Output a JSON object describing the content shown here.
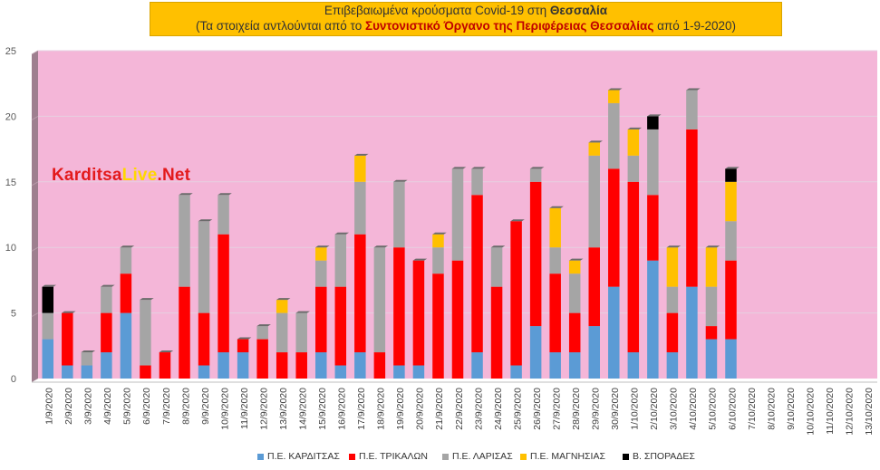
{
  "title": {
    "line1_prefix": "Επιβεβαιωμένα κρούσματα Covid-19 στη ",
    "line1_bold": "Θεσσαλία",
    "line2_prefix": "(Τα στοιχεία αντλούνται από το ",
    "line2_bold": "Συντονιστικό Όργανο της Περιφέρειας Θεσσαλίας",
    "line2_suffix": " από 1-9-2020)"
  },
  "watermark": {
    "part1": "Karditsa",
    "part2": "Live",
    "part3": ".Net"
  },
  "colors": {
    "plot_background": "#f4b6d8",
    "wall_left": "#9e7f8f",
    "karditsa": "#5b9bd5",
    "trikala": "#ff0000",
    "larisa": "#a5a5a5",
    "magnisia": "#ffc000",
    "sporades": "#000000"
  },
  "chart_data": {
    "type": "bar",
    "stacked": true,
    "ylim": [
      0,
      25
    ],
    "yticks": [
      "0",
      "5",
      "10",
      "15",
      "20",
      "25"
    ],
    "grid": true,
    "legend_position": "bottom",
    "categories": [
      "1/9/2020",
      "2/9/2020",
      "3/9/2020",
      "4/9/2020",
      "5/9/2020",
      "6/9/2020",
      "7/9/2020",
      "8/9/2020",
      "9/9/2020",
      "10/9/2020",
      "11/9/2020",
      "12/9/2020",
      "13/9/2020",
      "14/9/2020",
      "15/9/2020",
      "16/9/2020",
      "17/9/2020",
      "18/9/2020",
      "19/9/2020",
      "20/9/2020",
      "21/9/2020",
      "22/9/2020",
      "23/9/2020",
      "24/9/2020",
      "25/9/2020",
      "26/9/2020",
      "27/9/2020",
      "28/9/2020",
      "29/9/2020",
      "30/9/2020",
      "1/10/2020",
      "2/10/2020",
      "3/10/2020",
      "4/10/2020",
      "5/10/2020",
      "6/10/2020",
      "7/10/2020",
      "8/10/2020",
      "9/10/2020",
      "10/10/2020",
      "11/10/2020",
      "12/10/2020",
      "13/10/2020"
    ],
    "series": [
      {
        "name": "Π.Ε. ΚΑΡΔΙΤΣΑΣ",
        "color": "#5b9bd5",
        "values": [
          3,
          1,
          1,
          2,
          5,
          0,
          0,
          0,
          1,
          2,
          2,
          0,
          0,
          0,
          2,
          1,
          2,
          0,
          1,
          1,
          0,
          0,
          2,
          0,
          1,
          4,
          2,
          2,
          4,
          7,
          2,
          9,
          2,
          7,
          3,
          3,
          0,
          0,
          0,
          0,
          0,
          0,
          0
        ]
      },
      {
        "name": "Π.Ε. ΤΡΙΚΑΛΩΝ",
        "color": "#ff0000",
        "values": [
          0,
          4,
          0,
          3,
          3,
          1,
          2,
          7,
          4,
          9,
          1,
          3,
          2,
          2,
          5,
          6,
          9,
          2,
          9,
          8,
          8,
          9,
          12,
          7,
          11,
          11,
          6,
          3,
          6,
          9,
          13,
          5,
          3,
          12,
          1,
          6,
          0,
          0,
          0,
          0,
          0,
          0,
          0
        ]
      },
      {
        "name": "Π.Ε. ΛΑΡΙΣΑΣ",
        "color": "#a5a5a5",
        "values": [
          2,
          0,
          1,
          2,
          2,
          5,
          0,
          7,
          7,
          3,
          0,
          1,
          3,
          3,
          2,
          4,
          4,
          8,
          5,
          0,
          2,
          7,
          2,
          3,
          0,
          1,
          2,
          3,
          7,
          5,
          2,
          5,
          2,
          3,
          3,
          3,
          0,
          0,
          0,
          0,
          0,
          0,
          0
        ]
      },
      {
        "name": "Π.Ε. ΜΑΓΝΗΣΙΑΣ",
        "color": "#ffc000",
        "values": [
          0,
          0,
          0,
          0,
          0,
          0,
          0,
          0,
          0,
          0,
          0,
          0,
          1,
          0,
          1,
          0,
          2,
          0,
          0,
          0,
          1,
          0,
          0,
          0,
          0,
          0,
          3,
          1,
          1,
          1,
          2,
          0,
          3,
          0,
          3,
          3,
          0,
          0,
          0,
          0,
          0,
          0,
          0
        ]
      },
      {
        "name": "Β. ΣΠΟΡΑΔΕΣ",
        "color": "#000000",
        "values": [
          2,
          0,
          0,
          0,
          0,
          0,
          0,
          0,
          0,
          0,
          0,
          0,
          0,
          0,
          0,
          0,
          0,
          0,
          0,
          0,
          0,
          0,
          0,
          0,
          0,
          0,
          0,
          0,
          0,
          0,
          0,
          1,
          0,
          0,
          0,
          1,
          0,
          0,
          0,
          0,
          0,
          0,
          0
        ]
      }
    ]
  }
}
